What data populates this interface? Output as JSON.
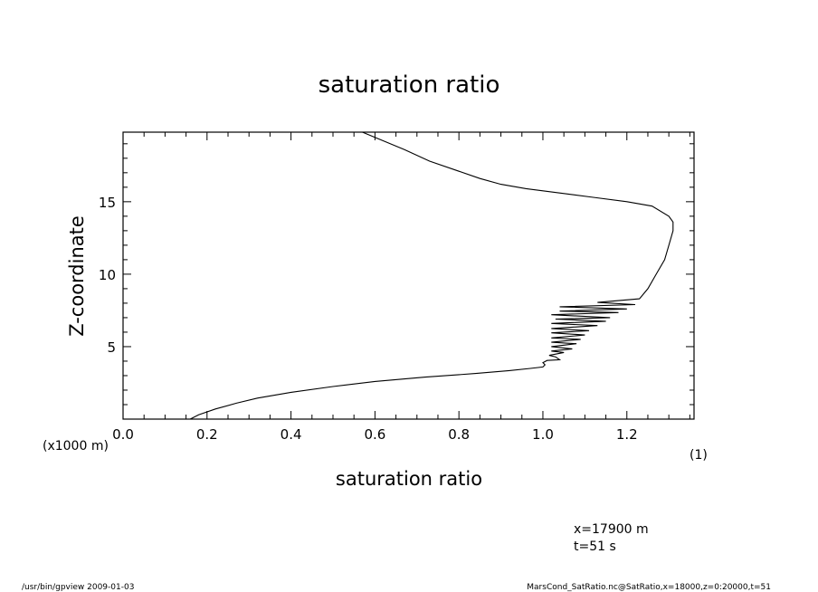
{
  "chart_data": {
    "type": "line",
    "title": "saturation ratio",
    "xlabel": "saturation ratio",
    "ylabel": "Z-coordinate",
    "x_unit_label": "(1)",
    "y_unit_label": "(x1000 m)",
    "xlim": [
      0.0,
      1.36
    ],
    "ylim": [
      0.0,
      19.8
    ],
    "x_ticks": [
      0.0,
      0.2,
      0.4,
      0.6,
      0.8,
      1.0,
      1.2
    ],
    "x_tick_labels": [
      "0.0",
      "0.2",
      "0.4",
      "0.6",
      "0.8",
      "1.0",
      "1.2"
    ],
    "y_ticks": [
      5,
      10,
      15
    ],
    "y_tick_labels": [
      "5",
      "10",
      "15"
    ],
    "grid": false,
    "series": [
      {
        "points": [
          [
            0.16,
            0.0
          ],
          [
            0.18,
            0.3
          ],
          [
            0.22,
            0.7
          ],
          [
            0.27,
            1.1
          ],
          [
            0.32,
            1.45
          ],
          [
            0.4,
            1.85
          ],
          [
            0.5,
            2.25
          ],
          [
            0.6,
            2.6
          ],
          [
            0.72,
            2.9
          ],
          [
            0.84,
            3.15
          ],
          [
            0.92,
            3.35
          ],
          [
            0.97,
            3.5
          ],
          [
            1.0,
            3.6
          ],
          [
            1.005,
            3.75
          ],
          [
            1.0,
            3.9
          ],
          [
            1.01,
            4.05
          ],
          [
            1.04,
            4.1
          ],
          [
            1.03,
            4.3
          ],
          [
            1.015,
            4.4
          ],
          [
            1.05,
            4.6
          ],
          [
            1.02,
            4.7
          ],
          [
            1.07,
            4.85
          ],
          [
            1.02,
            5.0
          ],
          [
            1.08,
            5.2
          ],
          [
            1.02,
            5.3
          ],
          [
            1.09,
            5.5
          ],
          [
            1.02,
            5.6
          ],
          [
            1.1,
            5.8
          ],
          [
            1.02,
            5.95
          ],
          [
            1.11,
            6.1
          ],
          [
            1.02,
            6.25
          ],
          [
            1.13,
            6.45
          ],
          [
            1.02,
            6.6
          ],
          [
            1.15,
            6.75
          ],
          [
            1.03,
            6.9
          ],
          [
            1.16,
            7.0
          ],
          [
            1.02,
            7.2
          ],
          [
            1.18,
            7.35
          ],
          [
            1.04,
            7.45
          ],
          [
            1.2,
            7.6
          ],
          [
            1.04,
            7.75
          ],
          [
            1.22,
            7.9
          ],
          [
            1.13,
            8.05
          ],
          [
            1.23,
            8.3
          ],
          [
            1.25,
            9.0
          ],
          [
            1.27,
            10.0
          ],
          [
            1.29,
            11.0
          ],
          [
            1.3,
            12.0
          ],
          [
            1.31,
            13.0
          ],
          [
            1.31,
            13.6
          ],
          [
            1.3,
            14.0
          ],
          [
            1.26,
            14.7
          ],
          [
            1.2,
            15.0
          ],
          [
            1.12,
            15.3
          ],
          [
            1.04,
            15.6
          ],
          [
            0.96,
            15.9
          ],
          [
            0.9,
            16.2
          ],
          [
            0.85,
            16.6
          ],
          [
            0.8,
            17.1
          ],
          [
            0.73,
            17.8
          ],
          [
            0.67,
            18.6
          ],
          [
            0.62,
            19.2
          ],
          [
            0.57,
            19.8
          ]
        ]
      }
    ]
  },
  "annotations": {
    "x_position": "x=17900 m",
    "time": "t=51 s"
  },
  "footer": {
    "left": "/usr/bin/gpview  2009-01-03",
    "right": "MarsCond_SatRatio.nc@SatRatio,x=18000,z=0:20000,t=51"
  }
}
